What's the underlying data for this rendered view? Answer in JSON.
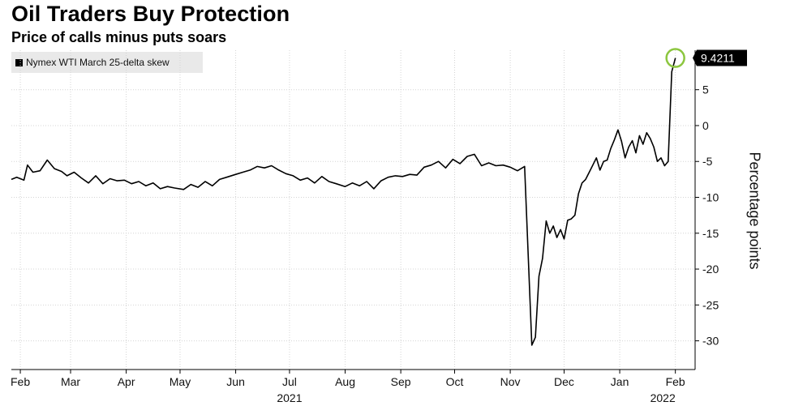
{
  "title": "Oil Traders Buy Protection",
  "subtitle": "Price of calls minus puts soars",
  "chart_data": {
    "type": "line",
    "title": "Oil Traders Buy Protection",
    "subtitle": "Price of calls minus puts soars",
    "xlabel": "",
    "ylabel": "Percentage points",
    "ylim": [
      -34,
      10.5
    ],
    "yticks": [
      -30,
      -25,
      -20,
      -15,
      -10,
      -5,
      0,
      5
    ],
    "xlim": [
      "2021-01-27",
      "2022-02-12"
    ],
    "x_tick_labels": [
      {
        "label": "Feb",
        "date": "2021-02-01"
      },
      {
        "label": "Mar",
        "date": "2021-03-01"
      },
      {
        "label": "Apr",
        "date": "2021-04-01"
      },
      {
        "label": "May",
        "date": "2021-05-01"
      },
      {
        "label": "Jun",
        "date": "2021-06-01"
      },
      {
        "label": "Jul",
        "date": "2021-07-01"
      },
      {
        "label": "Aug",
        "date": "2021-08-01"
      },
      {
        "label": "Sep",
        "date": "2021-09-01"
      },
      {
        "label": "Oct",
        "date": "2021-10-01"
      },
      {
        "label": "Nov",
        "date": "2021-11-01"
      },
      {
        "label": "Dec",
        "date": "2021-12-01"
      },
      {
        "label": "Jan",
        "date": "2022-01-01"
      },
      {
        "label": "Feb",
        "date": "2022-02-01"
      }
    ],
    "year_labels": [
      {
        "label": "2021",
        "date": "2021-07-01"
      },
      {
        "label": "2022",
        "date": "2022-01-25"
      }
    ],
    "grid": true,
    "legend_position": "top-left",
    "last_value_label": "9.4211",
    "series": [
      {
        "name": "Nymex WTI March 25-delta skew",
        "color": "#000000",
        "x": [
          "2021-01-27",
          "2021-01-30",
          "2021-02-03",
          "2021-02-05",
          "2021-02-08",
          "2021-02-12",
          "2021-02-16",
          "2021-02-20",
          "2021-02-24",
          "2021-02-27",
          "2021-03-03",
          "2021-03-07",
          "2021-03-11",
          "2021-03-15",
          "2021-03-19",
          "2021-03-23",
          "2021-03-27",
          "2021-03-31",
          "2021-04-04",
          "2021-04-08",
          "2021-04-12",
          "2021-04-16",
          "2021-04-20",
          "2021-04-24",
          "2021-04-28",
          "2021-05-03",
          "2021-05-07",
          "2021-05-11",
          "2021-05-15",
          "2021-05-19",
          "2021-05-23",
          "2021-05-27",
          "2021-06-01",
          "2021-06-05",
          "2021-06-09",
          "2021-06-13",
          "2021-06-17",
          "2021-06-21",
          "2021-06-25",
          "2021-06-29",
          "2021-07-03",
          "2021-07-07",
          "2021-07-11",
          "2021-07-15",
          "2021-07-19",
          "2021-07-23",
          "2021-07-27",
          "2021-08-01",
          "2021-08-05",
          "2021-08-09",
          "2021-08-13",
          "2021-08-17",
          "2021-08-21",
          "2021-08-25",
          "2021-08-29",
          "2021-09-02",
          "2021-09-06",
          "2021-09-10",
          "2021-09-14",
          "2021-09-18",
          "2021-09-22",
          "2021-09-26",
          "2021-09-30",
          "2021-10-04",
          "2021-10-08",
          "2021-10-12",
          "2021-10-16",
          "2021-10-20",
          "2021-10-24",
          "2021-10-28",
          "2021-11-01",
          "2021-11-05",
          "2021-11-09",
          "2021-11-11",
          "2021-11-13",
          "2021-11-15",
          "2021-11-17",
          "2021-11-19",
          "2021-11-21",
          "2021-11-23",
          "2021-11-25",
          "2021-11-27",
          "2021-11-29",
          "2021-12-01",
          "2021-12-03",
          "2021-12-05",
          "2021-12-07",
          "2021-12-09",
          "2021-12-11",
          "2021-12-13",
          "2021-12-15",
          "2021-12-17",
          "2021-12-19",
          "2021-12-21",
          "2021-12-23",
          "2021-12-25",
          "2021-12-27",
          "2021-12-29",
          "2021-12-31",
          "2022-01-02",
          "2022-01-04",
          "2022-01-06",
          "2022-01-08",
          "2022-01-10",
          "2022-01-12",
          "2022-01-14",
          "2022-01-16",
          "2022-01-18",
          "2022-01-20",
          "2022-01-22",
          "2022-01-24",
          "2022-01-26",
          "2022-01-28",
          "2022-01-30",
          "2022-02-01"
        ],
        "values": [
          -7.5,
          -7.2,
          -7.6,
          -5.5,
          -6.5,
          -6.3,
          -4.8,
          -6.0,
          -6.4,
          -7.0,
          -6.5,
          -7.3,
          -8.0,
          -7.0,
          -8.1,
          -7.4,
          -7.7,
          -7.6,
          -8.1,
          -7.8,
          -8.4,
          -8.0,
          -8.8,
          -8.5,
          -8.7,
          -8.9,
          -8.2,
          -8.6,
          -7.8,
          -8.4,
          -7.5,
          -7.2,
          -6.8,
          -6.5,
          -6.2,
          -5.7,
          -5.9,
          -5.6,
          -6.2,
          -6.7,
          -7.0,
          -7.6,
          -7.3,
          -8.0,
          -7.1,
          -7.8,
          -8.1,
          -8.5,
          -8.0,
          -8.4,
          -7.8,
          -8.8,
          -7.7,
          -7.2,
          -7.0,
          -7.1,
          -6.8,
          -6.9,
          -5.8,
          -5.5,
          -5.0,
          -5.9,
          -4.7,
          -5.3,
          -4.3,
          -4.0,
          -5.6,
          -5.2,
          -5.6,
          -5.5,
          -5.8,
          -6.3,
          -5.7,
          -18.0,
          -30.6,
          -29.5,
          -21.0,
          -18.5,
          -13.3,
          -15.0,
          -14.0,
          -15.6,
          -14.5,
          -15.8,
          -13.2,
          -13.0,
          -12.5,
          -9.5,
          -8.0,
          -7.5,
          -6.5,
          -5.5,
          -4.5,
          -6.2,
          -5.0,
          -4.8,
          -3.2,
          -2.0,
          -0.6,
          -2.2,
          -4.5,
          -3.0,
          -2.1,
          -3.8,
          -1.4,
          -2.6,
          -1.0,
          -1.8,
          -3.0,
          -5.0,
          -4.5,
          -5.6,
          -5.0,
          7.5,
          9.4211
        ]
      }
    ]
  }
}
